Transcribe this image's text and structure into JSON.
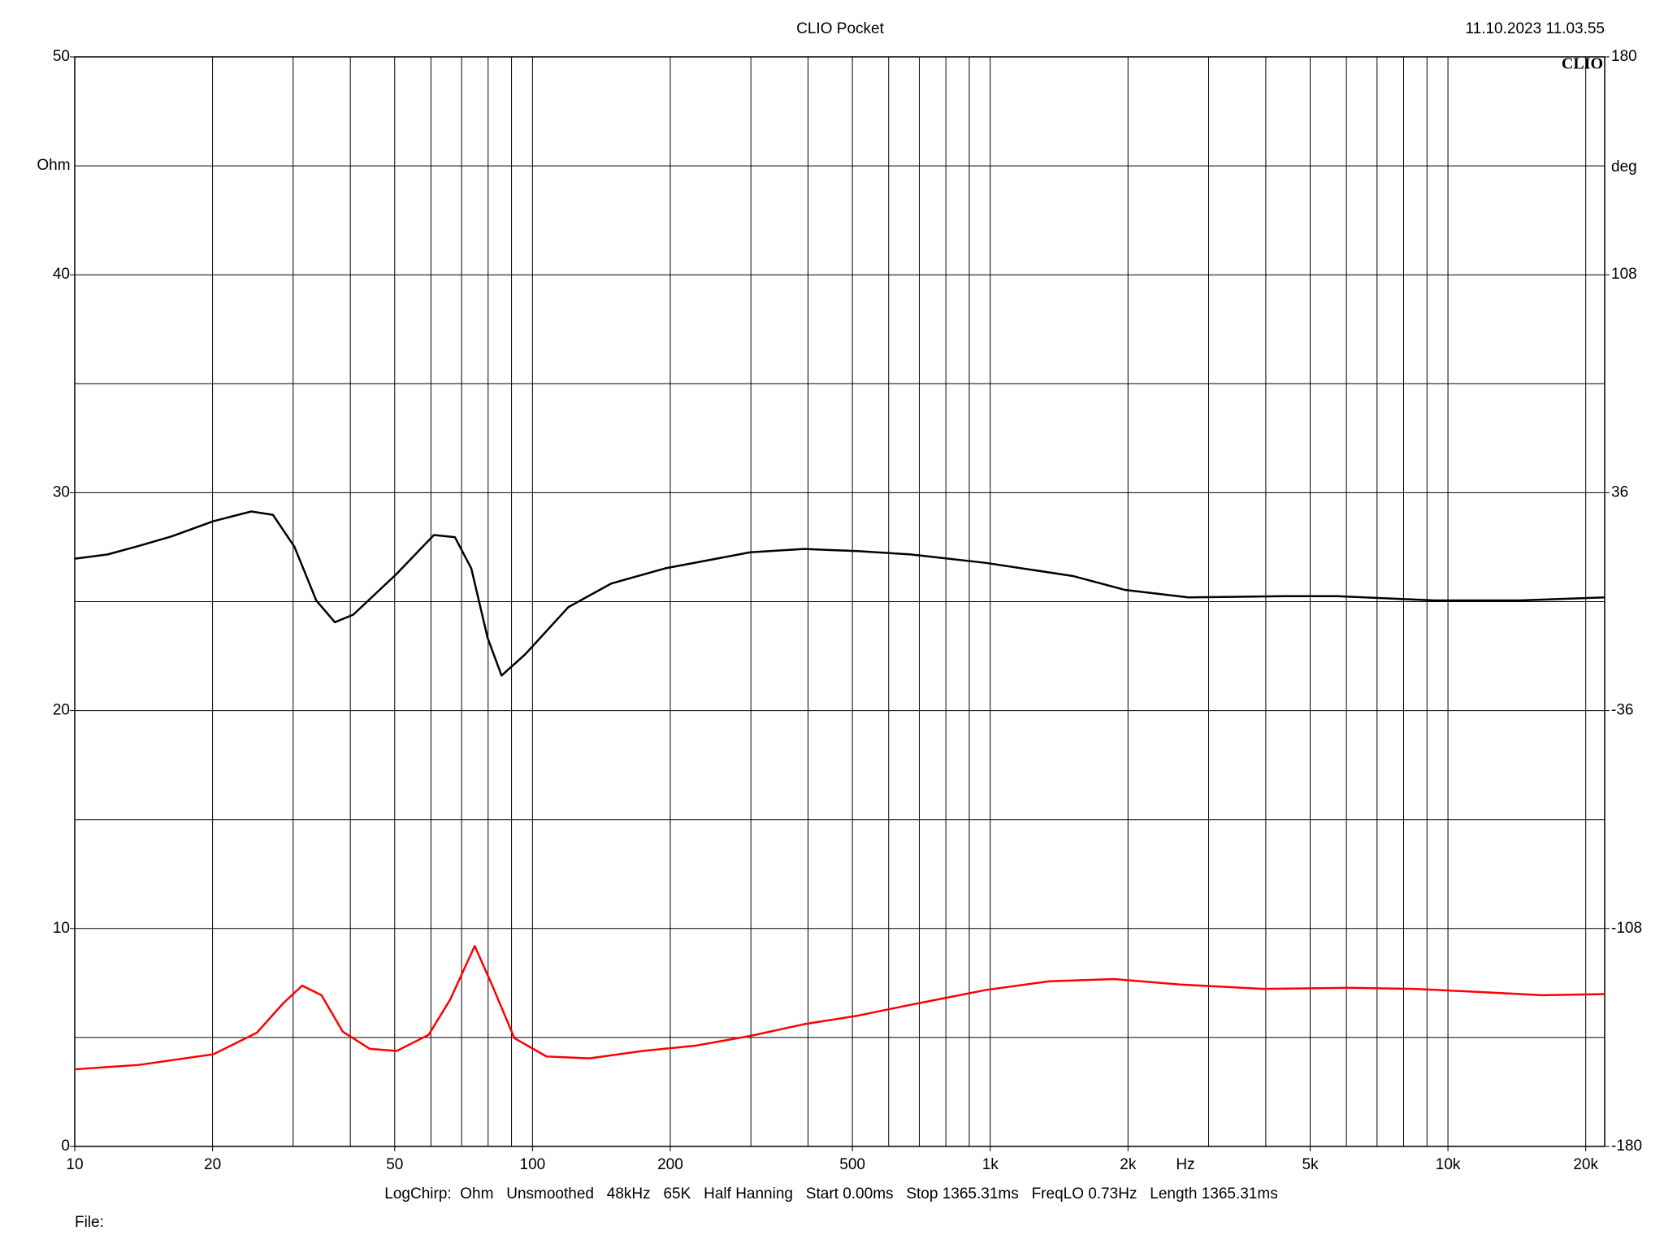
{
  "chart_data": {
    "type": "line",
    "title": "CLIO Pocket",
    "timestamp": "11.10.2023 11.03.55",
    "logo": "CLIO",
    "ylabel": "Ohm",
    "y2label": "deg",
    "xunit": "Hz",
    "footer": "LogChirp:  Ohm   Unsmoothed   48kHz   65K   Half Hanning   Start 0.00ms   Stop 1365.31ms   FreqLO 0.73Hz   Length 1365.31ms",
    "file": "File:",
    "xscale": "log",
    "grid": true,
    "xlim": [
      10,
      22000
    ],
    "xticks": [
      10,
      20,
      50,
      100,
      200,
      500,
      {
        "value": 1000,
        "label": "1k"
      },
      {
        "value": 2000,
        "label": "2k"
      },
      {
        "value": 5000,
        "label": "5k"
      },
      {
        "value": 10000,
        "label": "10k"
      },
      {
        "value": 20000,
        "label": "20k"
      }
    ],
    "xgrid": [
      10,
      20,
      30,
      40,
      50,
      60,
      70,
      80,
      90,
      100,
      200,
      300,
      400,
      500,
      600,
      700,
      800,
      900,
      1000,
      2000,
      3000,
      4000,
      5000,
      6000,
      7000,
      8000,
      9000,
      10000,
      20000
    ],
    "ylim": [
      0,
      50
    ],
    "yticks": [
      0,
      10,
      20,
      30,
      40,
      50
    ],
    "ygrid": [
      0,
      5,
      10,
      15,
      20,
      25,
      30,
      35,
      40,
      45,
      50
    ],
    "y2lim": [
      -180,
      180
    ],
    "y2ticks": [
      -180,
      -108,
      -36,
      36,
      108,
      180
    ],
    "series": [
      {
        "color": "#000000",
        "axis": "y2",
        "x": [
          10,
          11.8,
          13.8,
          16.3,
          20.1,
          24.3,
          27.1,
          30.2,
          33.7,
          37.0,
          40.6,
          50.5,
          60.9,
          67.7,
          73.5,
          79.8,
          85.6,
          96.4,
          119.8,
          148.7,
          194.9,
          298.9,
          392,
          513,
          670,
          979,
          1513,
          1967,
          2710,
          4390,
          5730,
          9350,
          14300,
          22000
        ],
        "values": [
          14.2,
          15.6,
          18.4,
          21.6,
          26.6,
          29.8,
          28.7,
          18.1,
          0.4,
          -6.8,
          -4.3,
          9.2,
          22.0,
          21.3,
          11.0,
          -12.0,
          -24.4,
          -17.4,
          -1.8,
          6.0,
          11.0,
          16.3,
          17.4,
          16.7,
          15.6,
          12.8,
          8.5,
          3.9,
          1.4,
          1.8,
          1.8,
          0.4,
          0.4,
          1.4
        ]
      },
      {
        "color": "#ff0000",
        "x": [
          10,
          13.8,
          20.1,
          25.0,
          28.6,
          31.4,
          34.6,
          38.5,
          44.1,
          50.5,
          59.3,
          66.1,
          74.8,
          81.9,
          91.3,
          107.3,
          133,
          174,
          228,
          299,
          392,
          513,
          670,
          979,
          1345,
          1865,
          2600,
          3960,
          6100,
          8450,
          11700,
          16100,
          22000
        ],
        "values": [
          3.54,
          3.74,
          4.23,
          5.22,
          6.59,
          7.38,
          6.94,
          5.27,
          4.48,
          4.38,
          5.12,
          6.74,
          9.2,
          7.33,
          4.97,
          4.13,
          4.04,
          4.38,
          4.63,
          5.07,
          5.61,
          6.0,
          6.5,
          7.18,
          7.58,
          7.68,
          7.43,
          7.23,
          7.28,
          7.23,
          7.09,
          6.94,
          6.99
        ]
      }
    ]
  }
}
